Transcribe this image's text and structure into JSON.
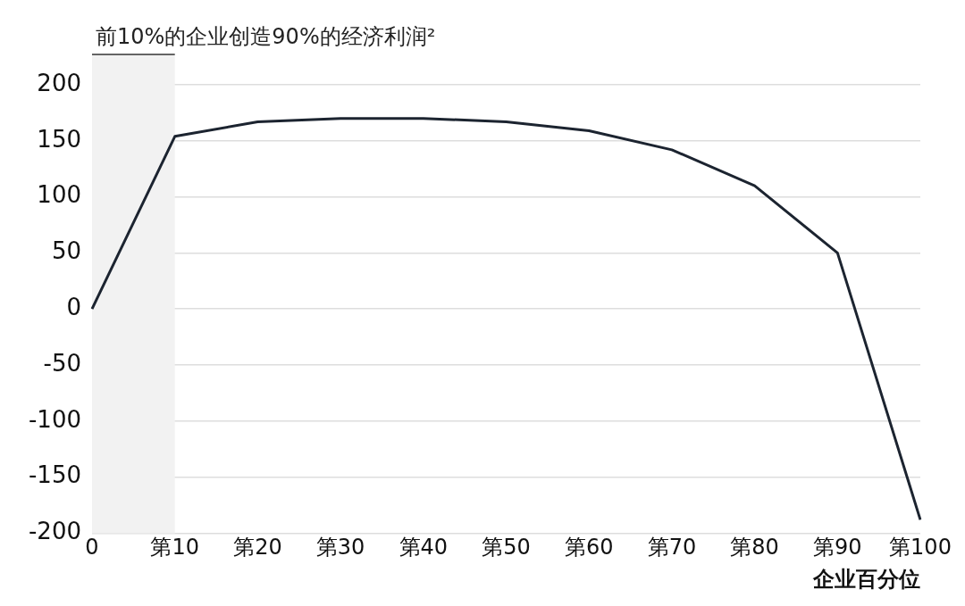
{
  "chart_data": {
    "type": "line",
    "xlabel": "企业百分位",
    "categories": [
      "0",
      "第10",
      "第20",
      "第30",
      "第40",
      "第50",
      "第60",
      "第70",
      "第80",
      "第90",
      "第100"
    ],
    "series": [
      {
        "color": "#1c2430",
        "values": [
          0,
          154,
          167,
          170,
          170,
          167,
          159,
          142,
          110,
          50,
          -188
        ]
      }
    ],
    "ylim": [
      -200,
      200
    ],
    "yticks": [
      -200,
      -150,
      -100,
      -50,
      0,
      50,
      100,
      150,
      200
    ],
    "bands": [
      {
        "axis": "x",
        "from": "0",
        "to": "第10",
        "label": "前10%的企业创造90%的经济利润²",
        "color": "#f2f2f2"
      }
    ],
    "grid": "y",
    "legend": false,
    "marker": "none",
    "line_style": "solid"
  }
}
